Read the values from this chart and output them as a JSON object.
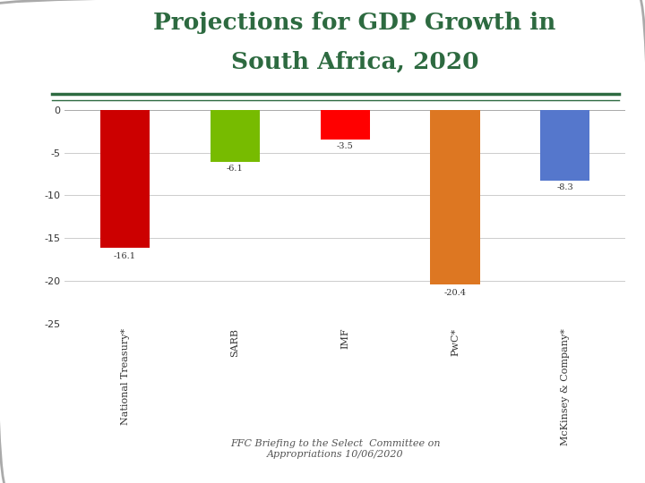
{
  "categories": [
    "National Treasury*",
    "SARB",
    "IMF",
    "PwC*",
    "McKinsey & Company*"
  ],
  "values": [
    -16.1,
    -6.1,
    -3.5,
    -20.4,
    -8.3
  ],
  "bar_colors": [
    "#cc0000",
    "#77bb00",
    "#ff0000",
    "#dd7722",
    "#5577cc"
  ],
  "title_line1": "Projections for GDP Growth in",
  "title_line2": "South Africa, 2020",
  "title_color": "#2d6a40",
  "ylim": [
    -25,
    1
  ],
  "yticks": [
    0,
    -5,
    -10,
    -15,
    -20,
    -25
  ],
  "background_color": "#ffffff",
  "grid_color": "#cccccc",
  "bar_width": 0.45,
  "value_fontsize": 7,
  "label_fontsize": 8,
  "footer_text": "FFC Briefing to the Select  Committee on\nAppropriations 10/06/2020",
  "footer_color": "#555555",
  "separator_color": "#2d6a40"
}
